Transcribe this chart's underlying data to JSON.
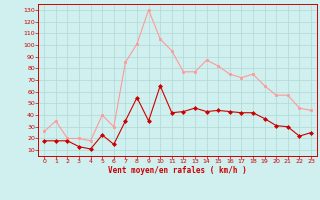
{
  "x": [
    0,
    1,
    2,
    3,
    4,
    5,
    6,
    7,
    8,
    9,
    10,
    11,
    12,
    13,
    14,
    15,
    16,
    17,
    18,
    19,
    20,
    21,
    22,
    23
  ],
  "wind_avg": [
    18,
    18,
    18,
    13,
    11,
    23,
    15,
    35,
    55,
    35,
    65,
    42,
    43,
    46,
    43,
    44,
    43,
    42,
    42,
    37,
    31,
    30,
    22,
    25
  ],
  "wind_gust": [
    26,
    35,
    20,
    20,
    18,
    40,
    30,
    85,
    101,
    130,
    105,
    95,
    77,
    77,
    87,
    82,
    75,
    72,
    75,
    65,
    57,
    57,
    46,
    44
  ],
  "bg_color": "#cff0ee",
  "grid_color": "#b0d8d5",
  "avg_color": "#cc0000",
  "gust_color": "#ff9999",
  "xlabel": "Vent moyen/en rafales ( km/h )",
  "xlabel_color": "#cc0000",
  "tick_color": "#cc0000",
  "spine_color": "#cc0000",
  "ylabel_ticks": [
    10,
    20,
    30,
    40,
    50,
    60,
    70,
    80,
    90,
    100,
    110,
    120,
    130
  ],
  "ylim": [
    5,
    135
  ],
  "xlim": [
    -0.5,
    23.5
  ],
  "figsize": [
    3.2,
    2.0
  ],
  "dpi": 100
}
